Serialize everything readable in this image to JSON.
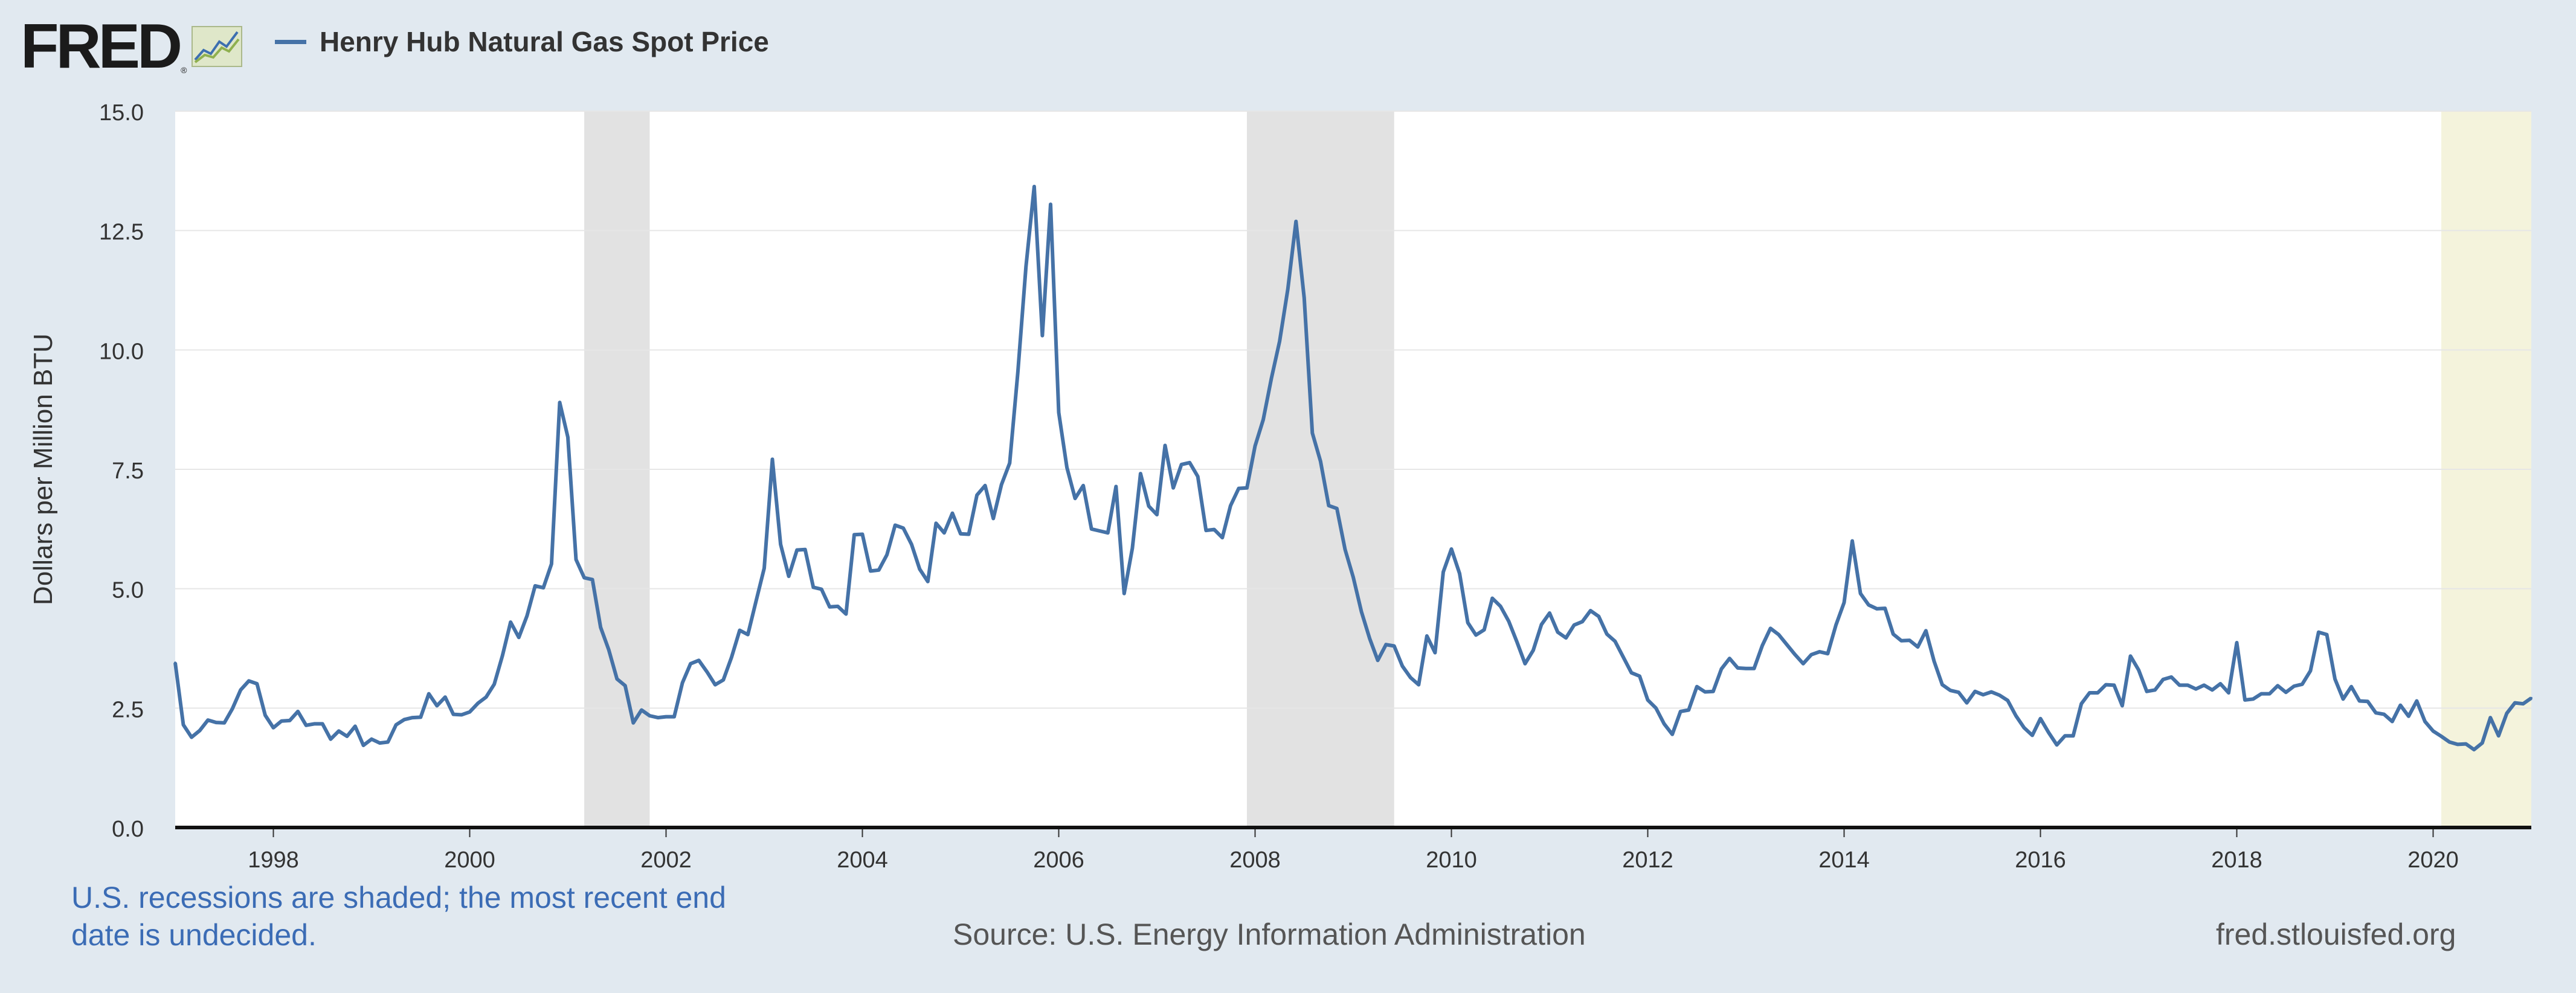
{
  "header": {
    "logo_text": "FRED",
    "logo_reg": "®",
    "legend_label": "Henry Hub Natural Gas Spot Price"
  },
  "footer": {
    "note": "U.S. recessions are shaded; the most recent end date is undecided.",
    "source": "Source: U.S. Energy Information Administration",
    "site": "fred.stlouisfed.org"
  },
  "colors": {
    "line": "#4572a7",
    "recession": "#e2e2e2",
    "recent_undecided": "#f4f3dc",
    "grid": "#e6e6e6",
    "background": "#e1e9f0"
  },
  "chart_data": {
    "type": "line",
    "title": "Henry Hub Natural Gas Spot Price",
    "xlabel": "",
    "ylabel": "Dollars per Million BTU",
    "xlim": [
      "1997-01",
      "2021-01"
    ],
    "ylim": [
      0,
      15
    ],
    "y_ticks": [
      "0.0",
      "2.5",
      "5.0",
      "7.5",
      "10.0",
      "12.5",
      "15.0"
    ],
    "x_ticks": [
      "1998",
      "2000",
      "2002",
      "2004",
      "2006",
      "2008",
      "2010",
      "2012",
      "2014",
      "2016",
      "2018",
      "2020"
    ],
    "grid": true,
    "legend_position": "top-left",
    "recessions": [
      {
        "start": "2001-03",
        "end": "2001-11"
      },
      {
        "start": "2007-12",
        "end": "2009-06"
      }
    ],
    "recent_undecided_start": "2020-02",
    "series": [
      {
        "name": "Henry Hub Natural Gas Spot Price",
        "start": "1997-01",
        "frequency": "monthly",
        "values": [
          3.45,
          2.15,
          1.89,
          2.03,
          2.25,
          2.2,
          2.19,
          2.49,
          2.88,
          3.07,
          3.01,
          2.35,
          2.09,
          2.23,
          2.24,
          2.43,
          2.14,
          2.17,
          2.17,
          1.85,
          2.02,
          1.91,
          2.12,
          1.72,
          1.85,
          1.77,
          1.79,
          2.15,
          2.26,
          2.3,
          2.31,
          2.8,
          2.55,
          2.73,
          2.37,
          2.36,
          2.42,
          2.6,
          2.73,
          3.0,
          3.6,
          4.3,
          3.98,
          4.43,
          5.06,
          5.02,
          5.52,
          8.9,
          8.17,
          5.61,
          5.23,
          5.19,
          4.19,
          3.72,
          3.11,
          2.97,
          2.19,
          2.46,
          2.34,
          2.3,
          2.32,
          2.32,
          3.03,
          3.43,
          3.5,
          3.26,
          2.99,
          3.09,
          3.56,
          4.13,
          4.04,
          4.74,
          5.43,
          7.71,
          5.93,
          5.26,
          5.81,
          5.82,
          5.03,
          4.99,
          4.62,
          4.63,
          4.47,
          6.13,
          6.14,
          5.37,
          5.39,
          5.71,
          6.33,
          6.27,
          5.93,
          5.41,
          5.15,
          6.37,
          6.17,
          6.58,
          6.15,
          6.14,
          6.96,
          7.16,
          6.47,
          7.18,
          7.63,
          9.53,
          11.75,
          13.42,
          10.3,
          13.05,
          8.69,
          7.54,
          6.89,
          7.16,
          6.25,
          6.21,
          6.17,
          7.14,
          4.9,
          5.85,
          7.41,
          6.73,
          6.55,
          8.0,
          7.11,
          7.6,
          7.64,
          7.35,
          6.22,
          6.24,
          6.07,
          6.74,
          7.1,
          7.11,
          7.99,
          8.54,
          9.41,
          10.18,
          11.27,
          12.69,
          11.09,
          8.26,
          7.67,
          6.74,
          6.68,
          5.82,
          5.24,
          4.52,
          3.96,
          3.5,
          3.83,
          3.8,
          3.38,
          3.14,
          2.99,
          4.01,
          3.66,
          5.35,
          5.83,
          5.32,
          4.29,
          4.03,
          4.14,
          4.8,
          4.63,
          4.32,
          3.89,
          3.43,
          3.71,
          4.25,
          4.49,
          4.09,
          3.97,
          4.24,
          4.31,
          4.54,
          4.42,
          4.05,
          3.9,
          3.57,
          3.24,
          3.17,
          2.67,
          2.5,
          2.17,
          1.95,
          2.43,
          2.46,
          2.95,
          2.84,
          2.85,
          3.32,
          3.54,
          3.34,
          3.33,
          3.33,
          3.81,
          4.17,
          4.04,
          3.83,
          3.62,
          3.43,
          3.62,
          3.68,
          3.64,
          4.24,
          4.71,
          6.0,
          4.9,
          4.66,
          4.58,
          4.59,
          4.05,
          3.91,
          3.92,
          3.78,
          4.12,
          3.48,
          2.99,
          2.87,
          2.83,
          2.61,
          2.85,
          2.78,
          2.84,
          2.77,
          2.66,
          2.34,
          2.09,
          1.93,
          2.28,
          1.99,
          1.73,
          1.92,
          1.92,
          2.59,
          2.82,
          2.82,
          2.99,
          2.98,
          2.55,
          3.59,
          3.3,
          2.85,
          2.88,
          3.1,
          3.15,
          2.98,
          2.98,
          2.9,
          2.98,
          2.88,
          3.01,
          2.82,
          3.87,
          2.67,
          2.69,
          2.8,
          2.8,
          2.97,
          2.83,
          2.96,
          3.0,
          3.28,
          4.09,
          4.04,
          3.11,
          2.69,
          2.95,
          2.65,
          2.64,
          2.4,
          2.37,
          2.22,
          2.56,
          2.33,
          2.65,
          2.22,
          2.02,
          1.91,
          1.79,
          1.74,
          1.75,
          1.63,
          1.77,
          2.3,
          1.92,
          2.39,
          2.61,
          2.59,
          2.71
        ]
      }
    ]
  }
}
